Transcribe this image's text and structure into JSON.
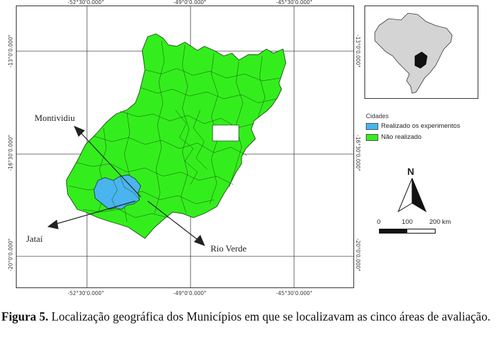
{
  "map": {
    "top_ticks": [
      "-52°30'0.000\"",
      "-49°0'0.000\"",
      "-45°30'0.000\""
    ],
    "bottom_ticks": [
      "-52°30'0.000\"",
      "-49°0'0.000\"",
      "-45°30'0.000\""
    ],
    "left_ticks": [
      "-13°0'0.000\"",
      "-16°30'0.000\"",
      "-20°0'0.000\""
    ],
    "right_ticks": [
      "-13°0'0.000\"",
      "-16°30'0.000\"",
      "-20°0'0.000\""
    ],
    "cities": {
      "montividiu": "Montividiu",
      "jatai": "Jataí",
      "rio_verde": "Rio Verde"
    },
    "colors": {
      "not_realized": "#33ee1c",
      "realized": "#4ab4ee",
      "border": "#1a4a12"
    }
  },
  "legend": {
    "title": "Cidades",
    "items": [
      {
        "label": "Realizado os experimentos",
        "color": "#4ab4ee"
      },
      {
        "label": "Não realizado",
        "color": "#33ee1c"
      }
    ]
  },
  "north_arrow": {
    "label": "N"
  },
  "scale_bar": {
    "labels": [
      "0",
      "100",
      "200 km"
    ]
  },
  "caption": {
    "label": "Figura 5.",
    "text": " Localização geográfica dos Municípios em que se localizavam as cinco áreas de avaliação."
  }
}
